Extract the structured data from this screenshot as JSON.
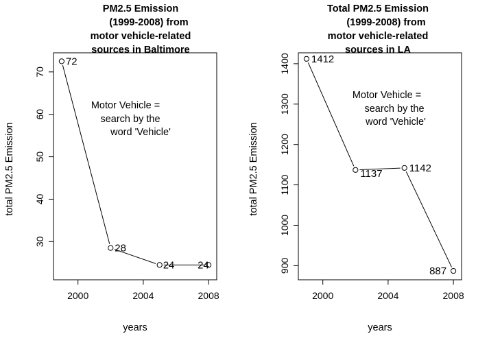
{
  "chart_data": [
    {
      "type": "line",
      "title": [
        "PM2.5 Emission",
        "(1999-2008) from",
        "motor vehicle-related",
        "sources in Baltimore"
      ],
      "xlabel": "years",
      "ylabel": "total PM2.5 Emission",
      "x": [
        1999,
        2002,
        2005,
        2008
      ],
      "y": [
        72.5,
        28.5,
        24.5,
        24.5
      ],
      "point_labels": [
        "72",
        "28",
        "24",
        "24"
      ],
      "xlim": [
        1998.5,
        2008.5
      ],
      "ylim": [
        21,
        74.5
      ],
      "xticks": [
        2000,
        2004,
        2008
      ],
      "xtick_labels": [
        "2000",
        "2004",
        "2008"
      ],
      "yticks": [
        30,
        40,
        50,
        60,
        70
      ],
      "ytick_labels": [
        "30",
        "40",
        "50",
        "60",
        "70"
      ],
      "annotation": [
        "Motor Vehicle =",
        "search by the",
        "word 'Vehicle'"
      ],
      "grid": false
    },
    {
      "type": "line",
      "title": [
        "Total PM2.5 Emission",
        "(1999-2008) from",
        "motor vehicle-related",
        "sources in LA"
      ],
      "xlabel": "years",
      "ylabel": "total PM2.5 Emission",
      "x": [
        1999,
        2002,
        2005,
        2008
      ],
      "y": [
        1412,
        1137,
        1142,
        887
      ],
      "point_labels": [
        "1412",
        "1137",
        "1142",
        "887"
      ],
      "xlim": [
        1998.5,
        2008.5
      ],
      "ylim": [
        865,
        1427
      ],
      "xticks": [
        2000,
        2004,
        2008
      ],
      "xtick_labels": [
        "2000",
        "2004",
        "2008"
      ],
      "yticks": [
        900,
        1000,
        1100,
        1200,
        1300,
        1400
      ],
      "ytick_labels": [
        "900",
        "1000",
        "1100",
        "1200",
        "1300",
        "1400"
      ],
      "annotation": [
        "Motor Vehicle =",
        "search by the",
        "word 'Vehicle'"
      ],
      "grid": false
    }
  ]
}
